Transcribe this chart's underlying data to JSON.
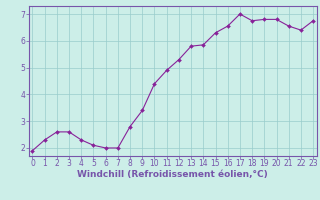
{
  "x": [
    0,
    1,
    2,
    3,
    4,
    5,
    6,
    7,
    8,
    9,
    10,
    11,
    12,
    13,
    14,
    15,
    16,
    17,
    18,
    19,
    20,
    21,
    22,
    23
  ],
  "y": [
    1.9,
    2.3,
    2.6,
    2.6,
    2.3,
    2.1,
    2.0,
    2.0,
    2.8,
    3.4,
    4.4,
    4.9,
    5.3,
    5.8,
    5.85,
    6.3,
    6.55,
    7.0,
    6.75,
    6.8,
    6.8,
    6.55,
    6.4,
    6.75
  ],
  "line_color": "#882299",
  "marker": "D",
  "markersize": 2.0,
  "linewidth": 0.8,
  "bg_color": "#cceee8",
  "grid_color": "#99cccc",
  "xlabel": "Windchill (Refroidissement éolien,°C)",
  "xlabel_fontsize": 6.5,
  "yticks": [
    2,
    3,
    4,
    5,
    6,
    7
  ],
  "xticks": [
    0,
    1,
    2,
    3,
    4,
    5,
    6,
    7,
    8,
    9,
    10,
    11,
    12,
    13,
    14,
    15,
    16,
    17,
    18,
    19,
    20,
    21,
    22,
    23
  ],
  "xlim": [
    -0.3,
    23.3
  ],
  "ylim": [
    1.7,
    7.3
  ],
  "tick_fontsize": 5.5,
  "spine_color": "#7755aa",
  "axis_color": "#7755aa"
}
